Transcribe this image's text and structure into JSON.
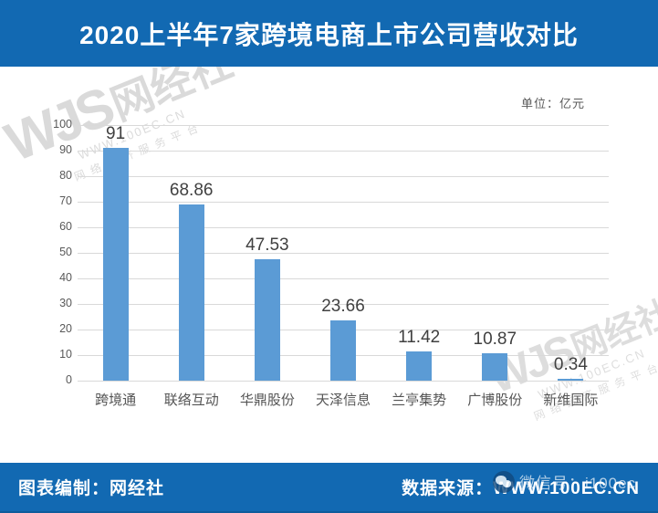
{
  "header": {
    "title": "2020上半年7家跨境电商上市公司营收对比"
  },
  "chart": {
    "unit_label": "单位：亿元"
  },
  "chart_data": {
    "type": "bar",
    "title": "2020上半年7家跨境电商上市公司营收对比",
    "categories": [
      "跨境通",
      "联络互动",
      "华鼎股份",
      "天泽信息",
      "兰亭集势",
      "广博股份",
      "新维国际"
    ],
    "values": [
      91,
      68.86,
      47.53,
      23.66,
      11.42,
      10.87,
      0.34
    ],
    "value_labels": [
      "91",
      "68.86",
      "47.53",
      "23.66",
      "11.42",
      "10.87",
      "0.34"
    ],
    "unit": "亿元",
    "xlabel": "",
    "ylabel": "",
    "ylim": [
      0,
      100
    ],
    "yticks": [
      0,
      10,
      20,
      30,
      40,
      50,
      60,
      70,
      80,
      90,
      100
    ],
    "grid": true,
    "legend": "none",
    "bar_color": "#5b9bd5"
  },
  "watermark": {
    "latin": "WJS",
    "logo": "网经社",
    "url": "WWW.100EC.CN",
    "slogan": "网络经济服务平台"
  },
  "footer": {
    "left": "图表编制：网经社",
    "right": "数据来源：WWW.100EC.CN",
    "wechat": "微信号：i100ec"
  },
  "colors": {
    "banner_blue": "#1269b2",
    "bar_blue": "#5b9bd5",
    "gridline": "#d9d9d9",
    "tick_text": "#595959",
    "watermark": "#c3c3c3"
  }
}
